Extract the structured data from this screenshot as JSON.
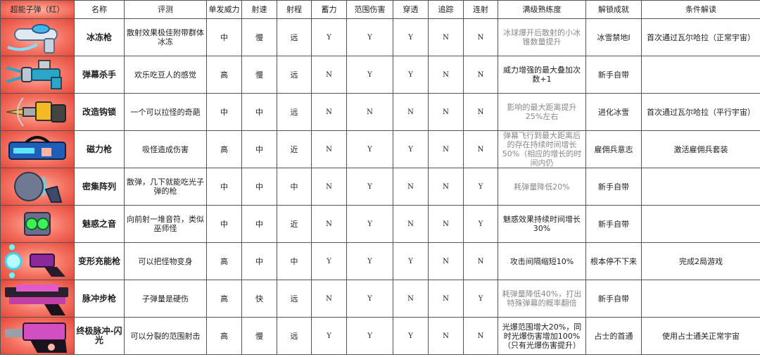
{
  "headers": [
    "超能子弹（红）",
    "名称",
    "评测",
    "单发威力",
    "射速",
    "射程",
    "蓄力",
    "范围伤害",
    "穿透",
    "追踪",
    "连射",
    "满级熟练度",
    "解锁成就",
    "条件解读"
  ],
  "colors": {
    "image_bg": "#f26a5a",
    "border": "#555555",
    "muted_text": "#888888"
  },
  "rows": [
    {
      "icon": "ice-gun-icon",
      "name": "冰冻枪",
      "review": "散射效果极佳附带群体冰冻",
      "power": "中",
      "rate": "慢",
      "range": "远",
      "charge": "Y",
      "aoe": "Y",
      "pierce": "Y",
      "track": "N",
      "burst": "N",
      "mastery": "冰球爆开后散射的小冰锥数量提升",
      "mastery_muted": true,
      "achievement": "冰雪禁地I",
      "condition": "首次通过瓦尔哈拉（正常宇宙）"
    },
    {
      "icon": "barrage-killer-icon",
      "name": "弹幕杀手",
      "review": "欢乐吃豆人的感觉",
      "power": "高",
      "rate": "慢",
      "range": "远",
      "charge": "N",
      "aoe": "Y",
      "pierce": "Y",
      "track": "N",
      "burst": "N",
      "mastery": "威力增强的最大叠加次数+1",
      "mastery_muted": false,
      "achievement": "新手自带",
      "condition": ""
    },
    {
      "icon": "grapple-gun-icon",
      "name": "改造钩锁",
      "review": "一个可以拉怪的奇葩",
      "power": "中",
      "rate": "中",
      "range": "远",
      "charge": "N",
      "aoe": "N",
      "pierce": "N",
      "track": "N",
      "burst": "N",
      "mastery": "影响的最大距离提升25%左右",
      "mastery_muted": true,
      "achievement": "进化冰雪",
      "condition": "首次通过瓦尔哈拉（平行宇宙）"
    },
    {
      "icon": "magnet-gun-icon",
      "name": "磁力枪",
      "review": "吸怪造成伤害",
      "power": "高",
      "rate": "中",
      "range": "近",
      "charge": "N",
      "aoe": "Y",
      "pierce": "Y",
      "track": "N",
      "burst": "N",
      "mastery": "弹幕飞行到最大距离后的存在持续时间增长50%（相应的增长的时间内仍",
      "mastery_muted": true,
      "achievement": "雇佣兵意志",
      "condition": "激活雇佣兵套装"
    },
    {
      "icon": "dense-array-icon",
      "name": "密集阵列",
      "review": "散弹，几下就能吃光子弹的枪",
      "power": "中",
      "rate": "中",
      "range": "中",
      "charge": "N",
      "aoe": "Y",
      "pierce": "N",
      "track": "N",
      "burst": "Y",
      "mastery": "耗弹量降低20%",
      "mastery_muted": true,
      "achievement": "新手自带",
      "condition": ""
    },
    {
      "icon": "charm-sound-icon",
      "name": "魅惑之音",
      "review": "向前射一堆音符，类似巫师怪",
      "power": "中",
      "rate": "中",
      "range": "近",
      "charge": "N",
      "aoe": "Y",
      "pierce": "N",
      "track": "N",
      "burst": "Y",
      "mastery": "魅惑效果持续时间增长30%",
      "mastery_muted": false,
      "achievement": "新手自带",
      "condition": ""
    },
    {
      "icon": "morph-gun-icon",
      "name": "变形充能枪",
      "review": "可以把怪物变身",
      "power": "高",
      "rate": "中",
      "range": "中",
      "charge": "Y",
      "aoe": "Y",
      "pierce": "Y",
      "track": "N",
      "burst": "N",
      "mastery": "攻击间隔缩短10%",
      "mastery_muted": false,
      "achievement": "根本停不下来",
      "condition": "完成2局游戏"
    },
    {
      "icon": "pulse-rifle-icon",
      "name": "脉冲步枪",
      "review": "子弹量是硬伤",
      "power": "高",
      "rate": "快",
      "range": "远",
      "charge": "N",
      "aoe": "Y",
      "pierce": "N",
      "track": "N",
      "burst": "Y",
      "mastery": "耗弹量降低40%，打出特殊弹幕的概率翻倍",
      "mastery_muted": true,
      "achievement": "新手自带",
      "condition": ""
    },
    {
      "icon": "ultimate-pulse-icon",
      "name": "终极脉冲-闪光",
      "review": "可以分裂的范围射击",
      "power": "高",
      "rate": "慢",
      "range": "远",
      "charge": "Y",
      "aoe": "Y",
      "pierce": "Y",
      "track": "N",
      "burst": "N",
      "mastery": "光爆范围增大20%，同时光爆伤害增加100%（只有光爆伤害提升）",
      "mastery_muted": false,
      "achievement": "占士的首通",
      "condition": "使用占士通关正常宇宙"
    }
  ]
}
